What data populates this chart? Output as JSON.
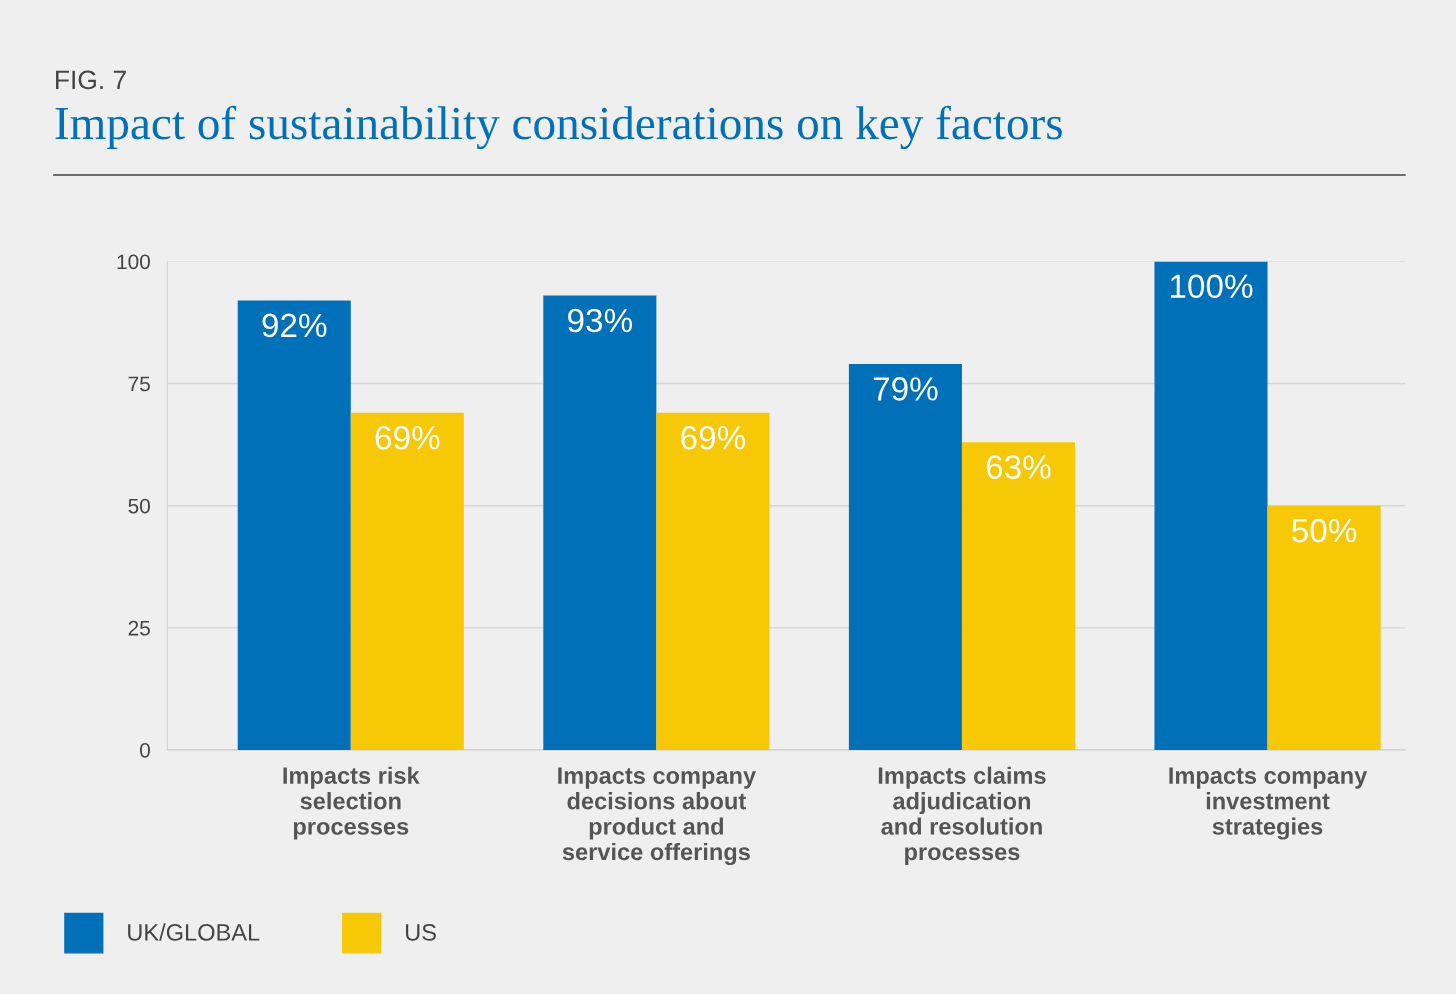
{
  "chart_data": {
    "type": "bar",
    "title": "Impact of sustainability considerations on key factors",
    "annotations": [
      "FIG. 7"
    ],
    "categories": [
      "Impacts risk\nselection\nprocesses",
      "Impacts company\ndecisions about\nproduct and\nservice offerings",
      "Impacts claims\nadjudication\nand resolution\nprocesses",
      "Impacts company\ninvestment\nstrategies"
    ],
    "series": [
      {
        "name": "UK/GLOBAL",
        "color": "#0070b8",
        "values": [
          92,
          93,
          79,
          100
        ],
        "value_labels": [
          "92%",
          "93%",
          "79%",
          "100%"
        ]
      },
      {
        "name": "US",
        "color": "#f7c806",
        "values": [
          69,
          69,
          63,
          50
        ],
        "value_labels": [
          "69%",
          "69%",
          "63%",
          "50%"
        ]
      }
    ],
    "ylim": [
      0,
      100
    ],
    "yticks": [
      0,
      25,
      50,
      75,
      100
    ],
    "grid": "y",
    "legend": "bottom left"
  }
}
